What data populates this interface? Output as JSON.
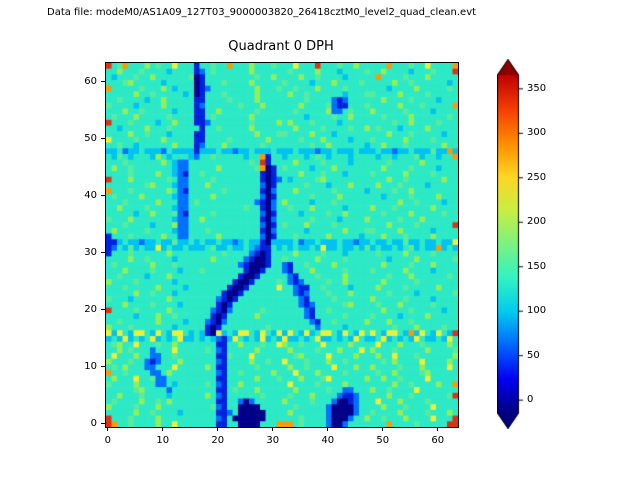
{
  "header": {
    "data_file_label": "Data file: modeM0/AS1A09_127T03_9000003820_26418cztM0_level2_quad_clean.evt"
  },
  "chart_data": {
    "type": "heatmap",
    "title": "Quadrant 0 DPH",
    "xlabel": "",
    "ylabel": "",
    "x_ticks": [
      0,
      10,
      20,
      30,
      40,
      50,
      60
    ],
    "y_ticks": [
      0,
      10,
      20,
      30,
      40,
      50,
      60
    ],
    "x_range": [
      -0.5,
      63.5
    ],
    "y_range": [
      -0.5,
      63.5
    ],
    "grid_size": 64,
    "colorbar": {
      "ticks": [
        0,
        50,
        100,
        150,
        200,
        250,
        300,
        350
      ],
      "vmin": -15,
      "vmax": 365,
      "extend": "both",
      "under_color": "#000080",
      "over_color": "#8c0000",
      "gradient": [
        "#000080",
        "#0000f1",
        "#0066ff",
        "#00ccee",
        "#33f3c3",
        "#7df27f",
        "#c8ee44",
        "#ffd622",
        "#ff8c00",
        "#f53d00",
        "#c00000"
      ]
    },
    "value_encoding": {
      "K": {
        "value": 5,
        "color": "#000088"
      },
      "B": {
        "value": 45,
        "color": "#0022dd"
      },
      "b": {
        "value": 90,
        "color": "#0070ff"
      },
      ":": {
        "value": 125,
        "color": "#00c3f0"
      },
      ".": {
        "value": 160,
        "color": "#2de9c5"
      },
      ",": {
        "value": 185,
        "color": "#57ec9c"
      },
      "g": {
        "value": 215,
        "color": "#93ef58"
      },
      "y": {
        "value": 250,
        "color": "#eef035"
      },
      "o": {
        "value": 300,
        "color": "#ff9800"
      },
      "r": {
        "value": 350,
        "color": "#e03010"
      }
    },
    "grid_rows_top_to_bottom": [
      "r.,o...g.,..y...B..,..o...g...,...y...r...,..g.....o...,..y....o",
      "..g...,....:....Bb.,......g......,....g...:....,..g....:...,...r",
      ".:...,..g......,KB.........,..g....g..,....:.....o....,...g.....",
      "...,g.....:.....KB...,....g.....,....:...g....,.....g..,......:.",
      "o.....,...g.:...KBb........g...,..,...g....,.......:....g.....,.",
      ".....g..,.....:.KB...,.....g.....g..,......:...,,....g....,.....",
      "..,....:..g.....BB....,....g........,....bBb......g....,....:...",
      ",....:....g.....Bb......,...g......g....,bBB...,.....g...,.....o",
      "...g..,.....:...BB..g......,......,.....gbb.,...g.....,....:....",
      ".,...g.....,....BB.,......g.........:....,..g.....,....g......,.",
      "r...,....:..g...BBb.......,....g.g...,....:.........,..g....,...",
      "..:....g...,.....B..,.....g.......g....,....,..g.,...:....g.....",
      "....g..,...:....BB.........g...,,....g...:.........g...,.....:..",
      "y....,....g.....BB....,......g.....,...g....:...,.....g....,....",
      "..,..:......g...Bb...g......,........,..g......:..g...,......g..",
      "::.b::.:::b.::::B:::.::b::.:::.:::.:::b::.:::.:::.::b::.:::,::o:",
      ".:,.:...:g.:...:b..,.....:..oB..:...:.,.:...:....:..:...,:..:..o",
      "...,......g.:bb...........,.rB....g....,....:......,.....g......",
      ".g..,.......:bb.....g......,oKB.,....:...g........g....,....:...",
      "....,....g..:bB..,..........BKB....g...,...:....,.....g....,....",
      "r...g......,.bb....,........BKBb.:....,g...........g..,......g..",
      ".......,g...:bb...g.........bKB.....,...:...g....g...,....:.....",
      "o...,......g.bB......,......BKb...g......,.....:....,..g........",
      ".,....g.....:bb....g........bKB......,....g.......:....,....g...",
      "...,.....g...bb.,..........bBKb.g....:...,...........g..,....:..",
      "..g....,....:bb..........,..BKb..,...g.....:....g...,......g....",
      ".....:..g...,bB....,........bKB....:....,..g......,....g.....,..",
      ",...g.......:bb..g..........BKb......,....:....g.....,...g......",
      "...,....:...gbb.............bKB.,...g....,.........g....,......r",
      ".g.....,....:bb...,.........BKb.....:......g...,,....g.....:....",
      "B...,.....g..bb.....g.......bKB...,.....g.....:...g...,....g....",
      "BB:.::b::.::,::.:.::.::b:.::BK::::.b::.:::.::b::.::.::,::.::.::y",
      "Bb.:,:.::y:.::.:::.,::.::.:bBB.:.:.::.:y::.::.:,:.::.:.,:.::o:.:",
      "B...,......g.........,....bBKB....g....,...:.....,....g....,....",
      "....g..,....:......g.....bBKKB..,.....g....,.......:....g......,",
      ".,......g...,...........bBKKKB..bB..,....g........g....,...g....",
      "...g....,....:...,.......BKKB...bB...g.....,....,.....g....:....",
      "..,....:...g............BKKB.....bB...,....g.......,...g......,.",
      "g....,......:..........BKKB....,.bBb....,..g......g.....,.......",
      "...,.....g....:.......BKKB.....y..bBB..,....:....g....,.....g...",
      ".....g..,...:........BKKB.........bBb...,...g......,....:......,",
      ",...:......g........bBKB...........bB....,......g.....,....:....",
      "...g....,....:......BKB............bBb.....,g....,...g.....,....",
      "r....,.....g.......bBKb.....,.......bB..,.........g....,.....:..",
      ".....:...g..,......BKB.....g........bB.....,....,....:....g.....",
      "..,......g....:...bBKb...............bB..,.....g...g...,........",
      "g...,.......:.....BKB........,........b....:........,...g....,..",
      "y:y.:yy.:y.:yy.:.:BKy:.:yy.:y.:y:y.:y:.yy.:y.:y.y.:yy.:o:y.:y.:r",
      ":.:y:.:.y:.:.y::.:.:bB:y.:.:y:.:y::.:.y::.:.:y.::.y:.:.:y.::.:y.",
      ".,g..y...,..g.......BB..g...,..yg..,...y....g....y...g...,....g.",
      "..g.,...b...y.....,.bB.....g.....g....,...g...y.g...,.....g....,",
      ".y...g..bb..,.......BB,...y.......,g....y....g...g..y...,......g",
      "g...,..bBb...g......bB....g..,..y...,...g..,......,.g....y....g.",
      ".,.g...bb...y.....g.BB.....,.....g..,....y...g..g....,...g....y.",
      "o..,....bb.g........bB..,.....g...y...g....,.....,..g....,g.....",
      ".g...y..,bb.........BB.....g...,...g...,y......g..g..,....y.....",
      ",....g...bb.:.....,.bB..g........y....,....g........g..,....g..o",
      ".....,g....b........BB.,...g......g.....,..bb...g..,....y.......",
      "..g...,....:......g.bB......,....,...g....bBBb.....g...,......,r",
      ".,....g..,.g........BB..bKb.....g....,...bKKBb...y...g....,.....",
      "g....,...g.........,bB..KKKK......,.....bKKKKb....g...,....y....",
      ".....g..,....:......BBb.KKKKK....g......bKKKKb..,....g....,...g.",
      "r...,....g..........bB.KKKKKK......,....bKKKb..g..,...g....y...r",
      "ro..,....g..y.......BB..KKKK...ooo.,....bKKb.......o....,.....rr"
    ]
  }
}
